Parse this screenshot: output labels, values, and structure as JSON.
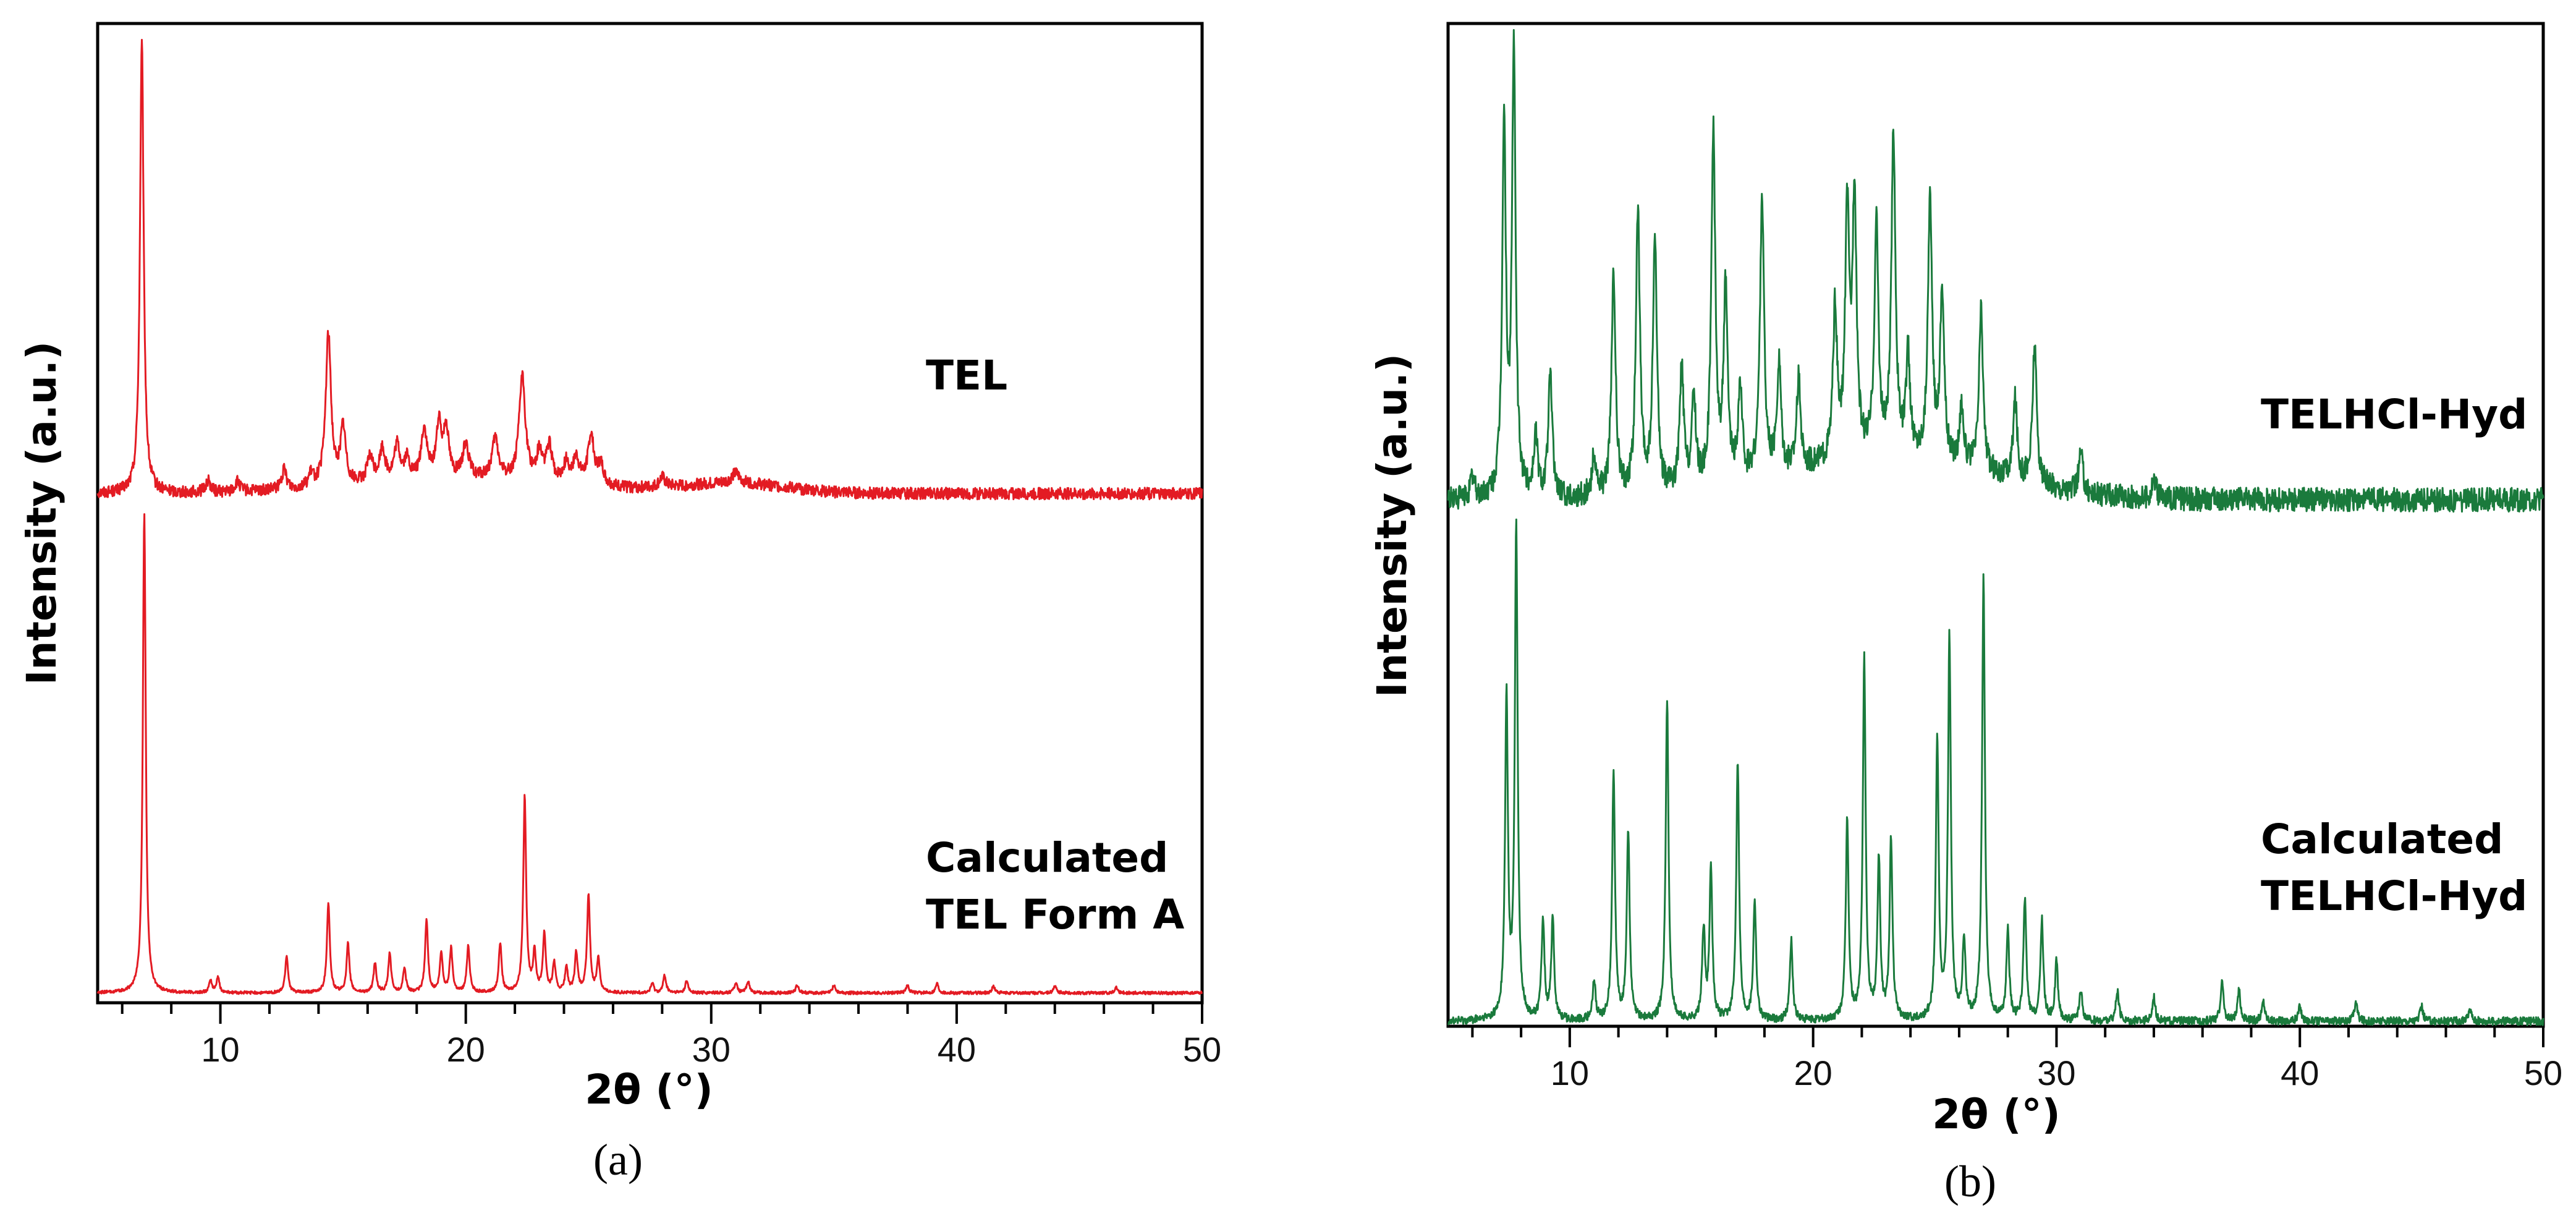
{
  "chart_data": [
    {
      "panel": "a",
      "type": "line",
      "panel_label": "(a)",
      "xlabel": "2θ (°)",
      "ylabel": "Intensity (a.u.)",
      "xlim": [
        5,
        50
      ],
      "x_ticks": [
        10,
        20,
        30,
        40,
        50
      ],
      "color": "#e31b23",
      "series": [
        {
          "name": "TEL",
          "label_lines": [
            "TEL"
          ],
          "baseline": 0.52,
          "noise": 0.006,
          "hump": [
            [
              20,
              0.015,
              6
            ],
            [
              31,
              0.01,
              3
            ]
          ],
          "peaks": [
            [
              6.8,
              0.46,
              0.09
            ],
            [
              9.5,
              0.012,
              0.12
            ],
            [
              10.7,
              0.01,
              0.12
            ],
            [
              12.6,
              0.02,
              0.12
            ],
            [
              13.7,
              0.012,
              0.12
            ],
            [
              14.4,
              0.155,
              0.13
            ],
            [
              15.0,
              0.058,
              0.13
            ],
            [
              16.1,
              0.025,
              0.14
            ],
            [
              16.6,
              0.032,
              0.14
            ],
            [
              17.2,
              0.035,
              0.14
            ],
            [
              17.6,
              0.02,
              0.12
            ],
            [
              18.3,
              0.05,
              0.14
            ],
            [
              18.9,
              0.052,
              0.13
            ],
            [
              19.2,
              0.05,
              0.13
            ],
            [
              20.0,
              0.035,
              0.14
            ],
            [
              21.2,
              0.04,
              0.15
            ],
            [
              22.3,
              0.105,
              0.15
            ],
            [
              23.0,
              0.028,
              0.14
            ],
            [
              23.4,
              0.035,
              0.14
            ],
            [
              24.1,
              0.02,
              0.14
            ],
            [
              24.5,
              0.025,
              0.14
            ],
            [
              25.1,
              0.05,
              0.15
            ],
            [
              25.5,
              0.02,
              0.14
            ],
            [
              28.0,
              0.01,
              0.15
            ],
            [
              31.0,
              0.01,
              0.2
            ]
          ]
        },
        {
          "name": "Calculated TEL Form A",
          "label_lines": [
            "Calculated",
            "TEL Form A"
          ],
          "baseline": 0.01,
          "noise": 0.0015,
          "peaks": [
            [
              6.9,
              0.49,
              0.07
            ],
            [
              9.6,
              0.012,
              0.07
            ],
            [
              9.9,
              0.016,
              0.07
            ],
            [
              12.7,
              0.038,
              0.07
            ],
            [
              14.4,
              0.092,
              0.07
            ],
            [
              15.2,
              0.05,
              0.07
            ],
            [
              16.3,
              0.03,
              0.07
            ],
            [
              16.9,
              0.04,
              0.07
            ],
            [
              17.5,
              0.025,
              0.07
            ],
            [
              18.4,
              0.074,
              0.07
            ],
            [
              19.0,
              0.04,
              0.07
            ],
            [
              19.4,
              0.045,
              0.07
            ],
            [
              20.1,
              0.048,
              0.07
            ],
            [
              21.4,
              0.05,
              0.07
            ],
            [
              22.4,
              0.2,
              0.07
            ],
            [
              22.8,
              0.04,
              0.07
            ],
            [
              23.2,
              0.06,
              0.07
            ],
            [
              23.6,
              0.03,
              0.07
            ],
            [
              24.1,
              0.025,
              0.07
            ],
            [
              24.5,
              0.04,
              0.07
            ],
            [
              25.0,
              0.1,
              0.07
            ],
            [
              25.4,
              0.035,
              0.07
            ],
            [
              27.6,
              0.01,
              0.07
            ],
            [
              28.1,
              0.018,
              0.07
            ],
            [
              29.0,
              0.012,
              0.07
            ],
            [
              31.0,
              0.01,
              0.07
            ],
            [
              31.5,
              0.012,
              0.07
            ],
            [
              33.5,
              0.008,
              0.07
            ],
            [
              35.0,
              0.008,
              0.07
            ],
            [
              38.0,
              0.008,
              0.07
            ],
            [
              39.2,
              0.01,
              0.07
            ],
            [
              41.5,
              0.007,
              0.07
            ],
            [
              44.0,
              0.007,
              0.07
            ],
            [
              46.5,
              0.006,
              0.07
            ]
          ]
        }
      ]
    },
    {
      "panel": "b",
      "type": "line",
      "panel_label": "(b)",
      "xlabel": "2θ (°)",
      "ylabel": "Intensity (a.u.)",
      "xlim": [
        5,
        50
      ],
      "x_ticks": [
        10,
        20,
        30,
        40,
        50
      ],
      "color": "#1a7a3c",
      "series": [
        {
          "name": "TELHCl-Hyd",
          "label_lines": [
            "TELHCl-Hyd"
          ],
          "baseline": 0.525,
          "noise": 0.012,
          "hump": [
            [
              23,
              0.04,
              6
            ]
          ],
          "peaks": [
            [
              6.0,
              0.02,
              0.1
            ],
            [
              7.3,
              0.37,
              0.09
            ],
            [
              7.7,
              0.44,
              0.09
            ],
            [
              8.6,
              0.06,
              0.1
            ],
            [
              9.2,
              0.12,
              0.1
            ],
            [
              11.0,
              0.04,
              0.1
            ],
            [
              11.8,
              0.22,
              0.1
            ],
            [
              12.8,
              0.28,
              0.1
            ],
            [
              13.5,
              0.25,
              0.1
            ],
            [
              14.6,
              0.12,
              0.1
            ],
            [
              15.1,
              0.09,
              0.1
            ],
            [
              15.9,
              0.35,
              0.1
            ],
            [
              16.4,
              0.19,
              0.1
            ],
            [
              17.0,
              0.09,
              0.1
            ],
            [
              17.9,
              0.28,
              0.1
            ],
            [
              18.6,
              0.11,
              0.1
            ],
            [
              19.4,
              0.09,
              0.1
            ],
            [
              20.9,
              0.15,
              0.1
            ],
            [
              21.4,
              0.24,
              0.1
            ],
            [
              21.7,
              0.26,
              0.1
            ],
            [
              22.6,
              0.23,
              0.1
            ],
            [
              23.3,
              0.32,
              0.1
            ],
            [
              23.9,
              0.1,
              0.1
            ],
            [
              24.8,
              0.26,
              0.1
            ],
            [
              25.3,
              0.17,
              0.1
            ],
            [
              26.1,
              0.06,
              0.1
            ],
            [
              26.9,
              0.16,
              0.1
            ],
            [
              28.3,
              0.08,
              0.1
            ],
            [
              29.1,
              0.14,
              0.1
            ],
            [
              31.0,
              0.04,
              0.1
            ],
            [
              34.0,
              0.02,
              0.1
            ]
          ]
        },
        {
          "name": "Calculated TELHCl-Hyd",
          "label_lines": [
            "Calculated",
            "TELHCl-Hyd"
          ],
          "baseline": 0.005,
          "noise": 0.004,
          "peaks": [
            [
              7.4,
              0.32,
              0.07
            ],
            [
              7.8,
              0.49,
              0.07
            ],
            [
              8.9,
              0.1,
              0.07
            ],
            [
              9.3,
              0.1,
              0.07
            ],
            [
              11.0,
              0.04,
              0.07
            ],
            [
              11.8,
              0.25,
              0.07
            ],
            [
              12.4,
              0.19,
              0.07
            ],
            [
              14.0,
              0.32,
              0.07
            ],
            [
              15.5,
              0.09,
              0.07
            ],
            [
              15.8,
              0.15,
              0.07
            ],
            [
              16.9,
              0.26,
              0.07
            ],
            [
              17.6,
              0.12,
              0.07
            ],
            [
              19.1,
              0.08,
              0.07
            ],
            [
              21.4,
              0.2,
              0.07
            ],
            [
              22.1,
              0.36,
              0.07
            ],
            [
              22.7,
              0.16,
              0.07
            ],
            [
              23.2,
              0.18,
              0.07
            ],
            [
              25.1,
              0.28,
              0.07
            ],
            [
              25.6,
              0.38,
              0.07
            ],
            [
              26.2,
              0.08,
              0.07
            ],
            [
              27.0,
              0.44,
              0.07
            ],
            [
              28.0,
              0.09,
              0.07
            ],
            [
              28.7,
              0.12,
              0.07
            ],
            [
              29.4,
              0.1,
              0.07
            ],
            [
              30.0,
              0.06,
              0.07
            ],
            [
              31.0,
              0.03,
              0.07
            ],
            [
              32.5,
              0.03,
              0.07
            ],
            [
              34.0,
              0.025,
              0.07
            ],
            [
              36.8,
              0.04,
              0.07
            ],
            [
              37.5,
              0.03,
              0.07
            ],
            [
              38.5,
              0.02,
              0.07
            ],
            [
              40.0,
              0.015,
              0.07
            ],
            [
              42.3,
              0.02,
              0.07
            ],
            [
              45.0,
              0.015,
              0.07
            ],
            [
              47.0,
              0.012,
              0.07
            ]
          ]
        }
      ]
    }
  ]
}
